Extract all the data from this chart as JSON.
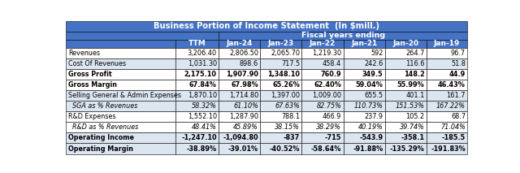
{
  "title": "Business Portion of Income Statement  (In $mill.)",
  "fiscal_label": "Fiscal years ending",
  "columns": [
    "",
    "TTM",
    "Jan-24",
    "Jan-23",
    "Jan-22",
    "Jan-21",
    "Jan-20",
    "Jan-19"
  ],
  "rows": [
    {
      "label": "Revenues",
      "values": [
        "3,206.40",
        "2,806.50",
        "2,065.70",
        "1,219.30",
        "592",
        "264.7",
        "96.7"
      ],
      "bold": false,
      "italic": false,
      "bg": "#ffffff"
    },
    {
      "label": "Cost Of Revenues",
      "values": [
        "1,031.30",
        "898.6",
        "717.5",
        "458.4",
        "242.6",
        "116.6",
        "51.8"
      ],
      "bold": false,
      "italic": false,
      "bg": "#dce6f1"
    },
    {
      "label": "Gross Profit",
      "values": [
        "2,175.10",
        "1,907.90",
        "1,348.10",
        "760.9",
        "349.5",
        "148.2",
        "44.9"
      ],
      "bold": true,
      "italic": false,
      "bg": "#ffffff"
    },
    {
      "label": "Gross Margin",
      "values": [
        "67.84%",
        "67.98%",
        "65.26%",
        "62.40%",
        "59.04%",
        "55.99%",
        "46.43%"
      ],
      "bold": true,
      "italic": false,
      "bg": "#ffffff"
    },
    {
      "label": "Selling General & Admin Expenses",
      "values": [
        "1,870.10",
        "1,714.80",
        "1,397.00",
        "1,009.00",
        "655.5",
        "401.1",
        "161.7"
      ],
      "bold": false,
      "italic": false,
      "bg": "#dce6f1"
    },
    {
      "label": "  SGA as % Revenues",
      "values": [
        "58.32%",
        "61.10%",
        "67.63%",
        "82.75%",
        "110.73%",
        "151.53%",
        "167.22%"
      ],
      "bold": false,
      "italic": true,
      "bg": "#dce6f1"
    },
    {
      "label": "R&D Expenses",
      "values": [
        "1,552.10",
        "1,287.90",
        "788.1",
        "466.9",
        "237.9",
        "105.2",
        "68.7"
      ],
      "bold": false,
      "italic": false,
      "bg": "#ffffff"
    },
    {
      "label": "  R&D as % Revenues",
      "values": [
        "48.41%",
        "45.89%",
        "38.15%",
        "38.29%",
        "40.19%",
        "39.74%",
        "71.04%"
      ],
      "bold": false,
      "italic": true,
      "bg": "#ffffff"
    },
    {
      "label": "Operating Income",
      "values": [
        "-1,247.10",
        "-1,094.80",
        "-837",
        "-715",
        "-543.9",
        "-358.1",
        "-185.5"
      ],
      "bold": true,
      "italic": false,
      "bg": "#dce6f1"
    },
    {
      "label": "Operating Margin",
      "values": [
        "-38.89%",
        "-39.01%",
        "-40.52%",
        "-58.64%",
        "-91.88%",
        "-135.29%",
        "-191.83%"
      ],
      "bold": true,
      "italic": false,
      "bg": "#dce6f1"
    }
  ],
  "header_bg": "#4472c4",
  "header_fg": "#ffffff",
  "subheader_bg": "#4472c4",
  "subheader_fg": "#ffffff",
  "col_header_bg": "#4472c4",
  "col_header_fg": "#ffffff",
  "border_color": "#000000"
}
